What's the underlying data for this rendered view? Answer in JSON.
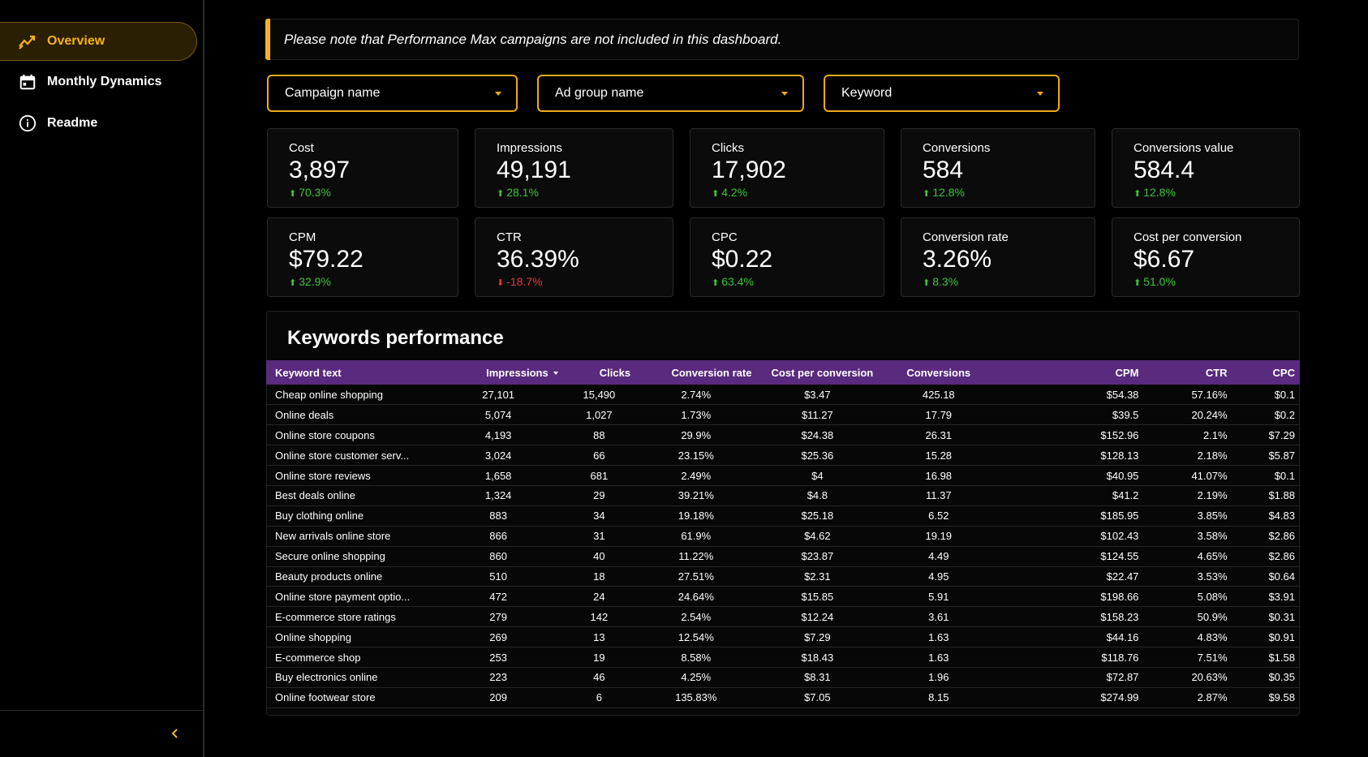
{
  "sidebar": {
    "items": [
      {
        "label": "Overview",
        "icon": "trend-chart-icon",
        "active": true
      },
      {
        "label": "Monthly Dynamics",
        "icon": "calendar-icon",
        "active": false
      },
      {
        "label": "Readme",
        "icon": "info-icon",
        "active": false
      }
    ]
  },
  "notice": "Please note that Performance Max campaigns are not included in this dashboard.",
  "filters": {
    "campaign": "Campaign name",
    "adgroup": "Ad group name",
    "keyword": "Keyword"
  },
  "colors": {
    "accent": "#f5b120",
    "header": "#5a2a7e",
    "up": "#3ec43a",
    "down": "#e53935"
  },
  "kpis": [
    {
      "label": "Cost",
      "value": "3,897",
      "delta": "70.3%",
      "dir": "up"
    },
    {
      "label": "Impressions",
      "value": "49,191",
      "delta": "28.1%",
      "dir": "up"
    },
    {
      "label": "Clicks",
      "value": "17,902",
      "delta": "4.2%",
      "dir": "up"
    },
    {
      "label": "Conversions",
      "value": "584",
      "delta": "12.8%",
      "dir": "up"
    },
    {
      "label": "Conversions value",
      "value": "584.4",
      "delta": "12.8%",
      "dir": "up"
    },
    {
      "label": "CPM",
      "value": "$79.22",
      "delta": "32.9%",
      "dir": "up"
    },
    {
      "label": "CTR",
      "value": "36.39%",
      "delta": "-18.7%",
      "dir": "down"
    },
    {
      "label": "CPC",
      "value": "$0.22",
      "delta": "63.4%",
      "dir": "up"
    },
    {
      "label": "Conversion rate",
      "value": "3.26%",
      "delta": "8.3%",
      "dir": "up"
    },
    {
      "label": "Cost per conversion",
      "value": "$6.67",
      "delta": "51.0%",
      "dir": "up"
    }
  ],
  "table": {
    "title": "Keywords performance",
    "columns": [
      "Keyword text",
      "Impressions",
      "Clicks",
      "Conversion rate",
      "Cost per conversion",
      "Conversions",
      "CPM",
      "CTR",
      "CPC"
    ],
    "rows": [
      [
        "Cheap online shopping",
        "27,101",
        "15,490",
        "2.74%",
        "$3.47",
        "425.18",
        "$54.38",
        "57.16%",
        "$0.1"
      ],
      [
        "Online deals",
        "5,074",
        "1,027",
        "1.73%",
        "$11.27",
        "17.79",
        "$39.5",
        "20.24%",
        "$0.2"
      ],
      [
        "Online store coupons",
        "4,193",
        "88",
        "29.9%",
        "$24.38",
        "26.31",
        "$152.96",
        "2.1%",
        "$7.29"
      ],
      [
        "Online store customer serv...",
        "3,024",
        "66",
        "23.15%",
        "$25.36",
        "15.28",
        "$128.13",
        "2.18%",
        "$5.87"
      ],
      [
        "Online store reviews",
        "1,658",
        "681",
        "2.49%",
        "$4",
        "16.98",
        "$40.95",
        "41.07%",
        "$0.1"
      ],
      [
        "Best deals online",
        "1,324",
        "29",
        "39.21%",
        "$4.8",
        "11.37",
        "$41.2",
        "2.19%",
        "$1.88"
      ],
      [
        "Buy clothing online",
        "883",
        "34",
        "19.18%",
        "$25.18",
        "6.52",
        "$185.95",
        "3.85%",
        "$4.83"
      ],
      [
        "New arrivals online store",
        "866",
        "31",
        "61.9%",
        "$4.62",
        "19.19",
        "$102.43",
        "3.58%",
        "$2.86"
      ],
      [
        "Secure online shopping",
        "860",
        "40",
        "11.22%",
        "$23.87",
        "4.49",
        "$124.55",
        "4.65%",
        "$2.86"
      ],
      [
        "Beauty products online",
        "510",
        "18",
        "27.51%",
        "$2.31",
        "4.95",
        "$22.47",
        "3.53%",
        "$0.64"
      ],
      [
        "Online store payment optio...",
        "472",
        "24",
        "24.64%",
        "$15.85",
        "5.91",
        "$198.66",
        "5.08%",
        "$3.91"
      ],
      [
        "E-commerce store ratings",
        "279",
        "142",
        "2.54%",
        "$12.24",
        "3.61",
        "$158.23",
        "50.9%",
        "$0.31"
      ],
      [
        "Online shopping",
        "269",
        "13",
        "12.54%",
        "$7.29",
        "1.63",
        "$44.16",
        "4.83%",
        "$0.91"
      ],
      [
        "E-commerce shop",
        "253",
        "19",
        "8.58%",
        "$18.43",
        "1.63",
        "$118.76",
        "7.51%",
        "$1.58"
      ],
      [
        "Buy electronics online",
        "223",
        "46",
        "4.25%",
        "$8.31",
        "1.96",
        "$72.87",
        "20.63%",
        "$0.35"
      ],
      [
        "Online footwear store",
        "209",
        "6",
        "135.83%",
        "$7.05",
        "8.15",
        "$274.99",
        "2.87%",
        "$9.58"
      ]
    ]
  }
}
